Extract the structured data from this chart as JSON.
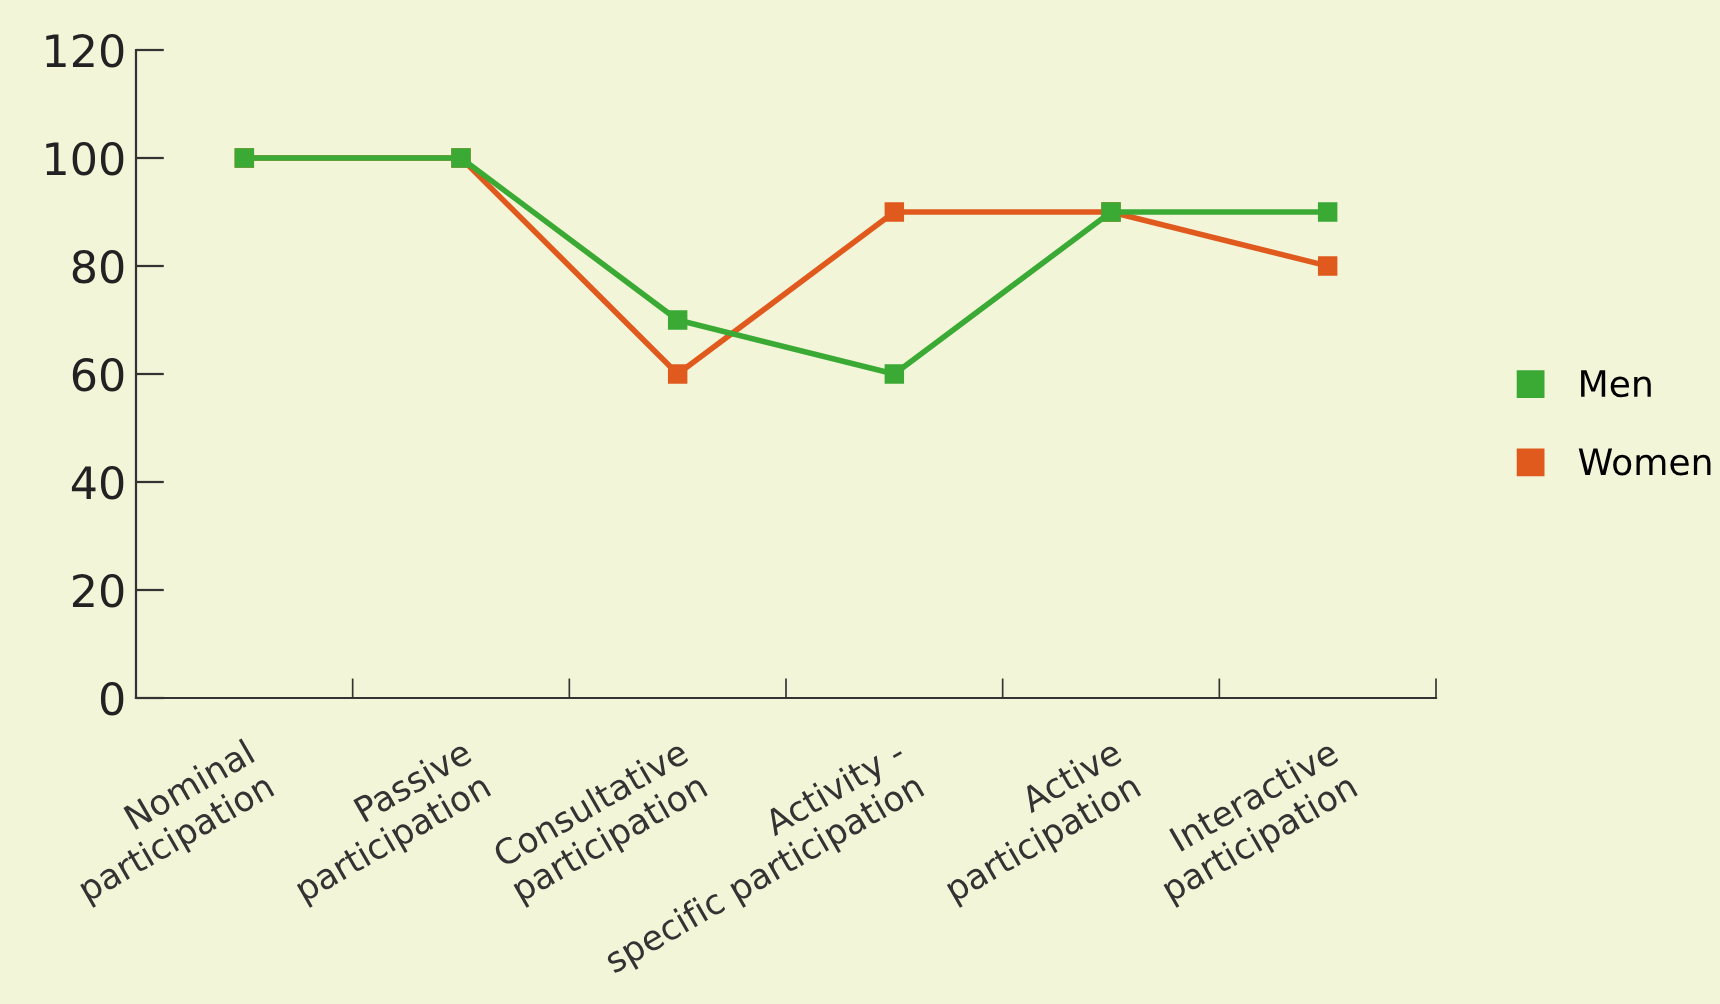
{
  "chart_data": {
    "type": "line",
    "categories": [
      "Nominal\nparticipation",
      "Passive\nparticipation",
      "Consultative\nparticipation",
      "Activity -\nspecific participation",
      "Active\nparticipation",
      "Interactive\nparticipation"
    ],
    "series": [
      {
        "name": "Men",
        "color": "#3aaa35",
        "values": [
          100,
          100,
          70,
          60,
          90,
          90
        ]
      },
      {
        "name": "Women",
        "color": "#e05a1e",
        "values": [
          100,
          100,
          60,
          90,
          90,
          80
        ]
      }
    ],
    "ylim": [
      0,
      120
    ],
    "yticks": [
      0,
      20,
      40,
      60,
      80,
      100,
      120
    ],
    "marker": "square",
    "line_style": "solid",
    "grid": false,
    "legend": "right"
  }
}
